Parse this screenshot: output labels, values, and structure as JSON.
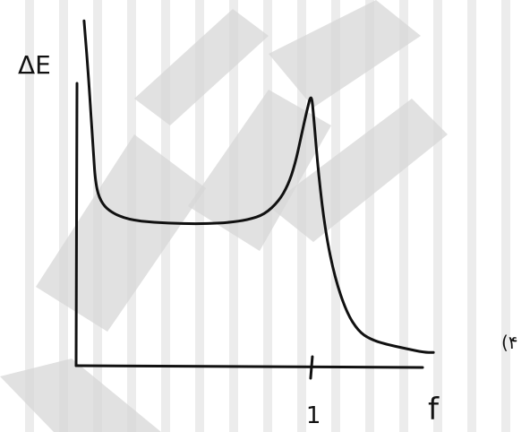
{
  "chart_data": {
    "type": "line",
    "title": "",
    "ylabel": "ΔE",
    "xlabel": "f",
    "option_label": "(۴",
    "x_ticks": [
      {
        "value": 1,
        "label": "1"
      }
    ],
    "xlim": [
      0,
      1.55
    ],
    "ylim": [
      0,
      1.25
    ],
    "grid": false,
    "series": [
      {
        "x": [
          0.03,
          0.05,
          0.07,
          0.08,
          0.1,
          0.14,
          0.22,
          0.33,
          0.45,
          0.56,
          0.65,
          0.73,
          0.8,
          0.86,
          0.9,
          0.93,
          0.955,
          0.98,
          1.0,
          1.01,
          1.03,
          1.06,
          1.1,
          1.15,
          1.2,
          1.25,
          1.32,
          1.4,
          1.48,
          1.52
        ],
        "y": [
          1.3,
          1.08,
          0.8,
          0.68,
          0.62,
          0.58,
          0.55,
          0.54,
          0.535,
          0.535,
          0.54,
          0.55,
          0.57,
          0.62,
          0.68,
          0.76,
          0.86,
          0.96,
          1.03,
          0.93,
          0.72,
          0.5,
          0.33,
          0.2,
          0.13,
          0.1,
          0.08,
          0.065,
          0.05,
          0.05
        ]
      }
    ]
  },
  "watermark": {
    "text": "isirp",
    "color": "#d7d7d7"
  },
  "colors": {
    "ink": "#111111",
    "background": "#ffffff"
  }
}
